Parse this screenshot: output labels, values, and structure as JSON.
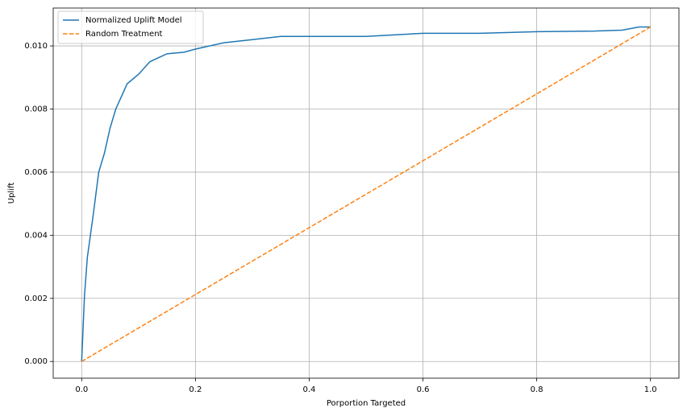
{
  "chart_data": {
    "type": "line",
    "xlabel": "Porportion Targeted",
    "ylabel": "Uplift",
    "xlim": [
      -0.05,
      1.05
    ],
    "ylim": [
      -0.00053,
      0.0112
    ],
    "xticks": [
      {
        "value": 0,
        "label": "0.0"
      },
      0.2,
      0.4,
      0.6,
      0.8,
      {
        "value": 1,
        "label": "1.0"
      }
    ],
    "yticks": [
      {
        "value": 0,
        "label": "0.000"
      },
      0.002,
      0.004,
      0.006,
      0.008,
      {
        "value": 0.01,
        "label": "0.010"
      }
    ],
    "grid": true,
    "legend": "upper left",
    "series": [
      {
        "name": "Normalized Uplift Model",
        "color": "#1f77b4",
        "dash": false,
        "x": [
          0,
          0.005,
          0.01,
          0.02,
          0.03,
          0.04,
          0.05,
          0.06,
          0.07,
          0.08,
          0.1,
          0.12,
          0.15,
          0.18,
          0.2,
          0.25,
          0.3,
          0.35,
          0.4,
          0.5,
          0.6,
          0.7,
          0.8,
          0.9,
          0.95,
          0.98,
          1.0
        ],
        "values": [
          0,
          0.0021,
          0.0033,
          0.0046,
          0.006,
          0.0066,
          0.0074,
          0.008,
          0.0084,
          0.0088,
          0.0091,
          0.0095,
          0.00975,
          0.0098,
          0.0099,
          0.0101,
          0.0102,
          0.0103,
          0.0103,
          0.0103,
          0.0104,
          0.0104,
          0.01045,
          0.01047,
          0.0105,
          0.0106,
          0.0106
        ]
      },
      {
        "name": "Random Treatment",
        "color": "#ff7f0e",
        "dash": true,
        "x": [
          0,
          1.0
        ],
        "values": [
          0,
          0.0106
        ]
      }
    ]
  }
}
